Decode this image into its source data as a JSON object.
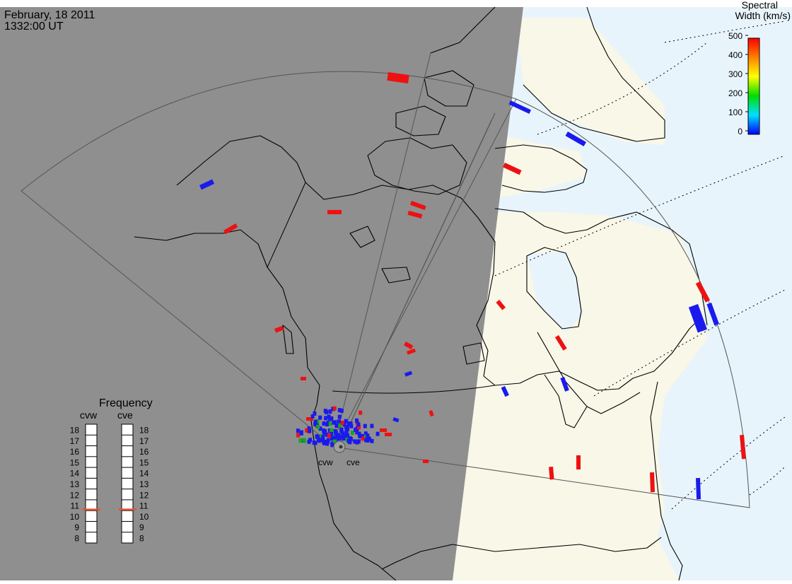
{
  "header": {
    "date": "February, 18 2011",
    "time": "1332:00 UT"
  },
  "colorbar": {
    "title_line1": "Spectral",
    "title_line2": "Width (km/s)",
    "ticks": [
      "500",
      "400",
      "300",
      "200",
      "100",
      "0"
    ]
  },
  "frequency": {
    "title": "Frequency",
    "radars": [
      {
        "label": "cvw",
        "value_mhz": 10.6
      },
      {
        "label": "cve",
        "value_mhz": 10.6
      }
    ],
    "scale": [
      "18",
      "17",
      "16",
      "15",
      "14",
      "13",
      "12",
      "11",
      "10",
      "9",
      "8"
    ]
  },
  "sites": [
    {
      "label": "cvw"
    },
    {
      "label": "cve"
    }
  ],
  "colors": {
    "night": "#8f8f8f",
    "day_land": "#f8f7e8",
    "day_ocean": "#e8f4fc",
    "low_width": "#1a1aee",
    "high_width": "#ee1111",
    "freq_marker": "#e8502a"
  }
}
